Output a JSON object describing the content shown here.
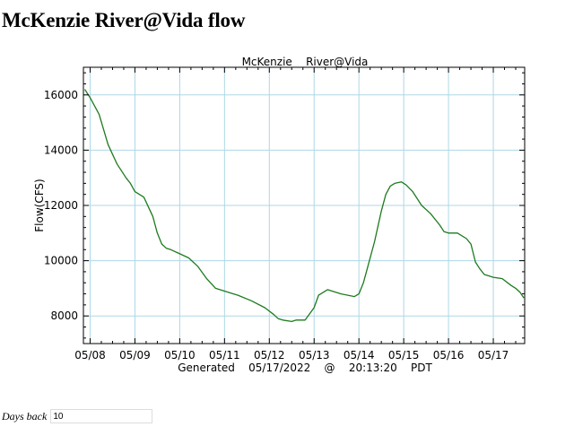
{
  "page": {
    "heading": "McKenzie River@Vida flow",
    "days_back_label": "Days back",
    "days_back_value": "10"
  },
  "chart_data": {
    "type": "line",
    "title": "McKenzie    River@Vida",
    "ylabel": "Flow(CFS)",
    "xlabel": "Generated    05/17/2022    @    20:13:20    PDT",
    "ylim": [
      7000,
      17000
    ],
    "xlim": [
      -0.15,
      9.7
    ],
    "yticks": [
      8000,
      10000,
      12000,
      14000,
      16000
    ],
    "xticks": [
      {
        "x": 0,
        "label": "05/08"
      },
      {
        "x": 1,
        "label": "05/09"
      },
      {
        "x": 2,
        "label": "05/10"
      },
      {
        "x": 3,
        "label": "05/11"
      },
      {
        "x": 4,
        "label": "05/12"
      },
      {
        "x": 5,
        "label": "05/13"
      },
      {
        "x": 6,
        "label": "05/14"
      },
      {
        "x": 7,
        "label": "05/15"
      },
      {
        "x": 8,
        "label": "05/16"
      },
      {
        "x": 9,
        "label": "05/17"
      }
    ],
    "grid": true,
    "colors": {
      "line": "#1e7a1e",
      "grid": "#add8e6",
      "axis": "#000000"
    },
    "series": [
      {
        "name": "Flow",
        "x": [
          -0.12,
          0.0,
          0.2,
          0.4,
          0.6,
          0.8,
          0.9,
          1.0,
          1.2,
          1.4,
          1.5,
          1.6,
          1.7,
          1.8,
          2.0,
          2.2,
          2.4,
          2.6,
          2.8,
          3.0,
          3.3,
          3.6,
          3.9,
          4.1,
          4.2,
          4.3,
          4.5,
          4.6,
          4.8,
          5.0,
          5.1,
          5.3,
          5.6,
          5.9,
          6.0,
          6.1,
          6.2,
          6.35,
          6.5,
          6.6,
          6.7,
          6.8,
          6.95,
          7.05,
          7.2,
          7.4,
          7.6,
          7.8,
          7.9,
          8.0,
          8.2,
          8.4,
          8.5,
          8.6,
          8.7,
          8.8,
          8.9,
          9.0,
          9.2,
          9.4,
          9.5,
          9.6,
          9.68
        ],
        "y": [
          16200,
          15900,
          15300,
          14200,
          13500,
          13000,
          12800,
          12500,
          12300,
          11600,
          11000,
          10600,
          10450,
          10400,
          10250,
          10100,
          9800,
          9350,
          9000,
          8900,
          8750,
          8550,
          8300,
          8050,
          7900,
          7850,
          7800,
          7850,
          7850,
          8300,
          8750,
          8950,
          8800,
          8700,
          8800,
          9200,
          9800,
          10700,
          11800,
          12400,
          12700,
          12800,
          12850,
          12750,
          12500,
          12000,
          11700,
          11300,
          11050,
          11000,
          11000,
          10800,
          10600,
          9950,
          9700,
          9500,
          9450,
          9400,
          9350,
          9100,
          9000,
          8850,
          8650
        ]
      }
    ]
  }
}
